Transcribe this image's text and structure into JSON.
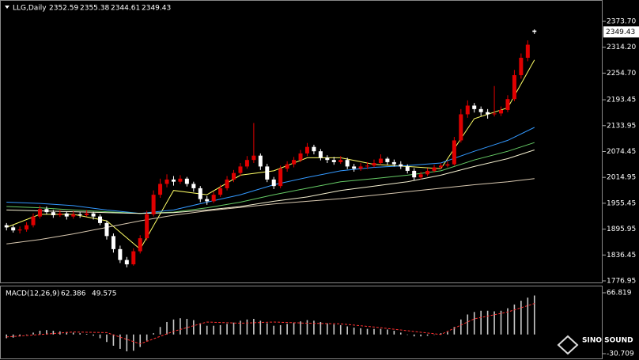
{
  "chart_data": [
    {
      "type": "candlestick",
      "title": "LLG,Daily",
      "ohlc": [
        2352.59,
        2355.38,
        2344.61,
        2349.43
      ],
      "current_price": 2349.43,
      "ylim": [
        1771.5,
        2419.2
      ],
      "yticks": [
        {
          "value": 2373.7,
          "label": "2373.70"
        },
        {
          "value": 2314.2,
          "label": "2314.20"
        },
        {
          "value": 2254.7,
          "label": "2254.70"
        },
        2193.45,
        2133.95,
        2074.45,
        2014.95,
        1955.45,
        1895.95,
        1836.45,
        1776.95
      ],
      "up_color": "#e00000",
      "down_color": "#ffffff",
      "candles": [
        [
          1905,
          1910,
          1893,
          1900
        ],
        [
          1900,
          1905,
          1888,
          1893
        ],
        [
          1893,
          1902,
          1886,
          1895
        ],
        [
          1895,
          1912,
          1890,
          1905
        ],
        [
          1905,
          1932,
          1900,
          1925
        ],
        [
          1925,
          1950,
          1920,
          1942
        ],
        [
          1942,
          1948,
          1930,
          1935
        ],
        [
          1935,
          1940,
          1922,
          1928
        ],
        [
          1928,
          1940,
          1924,
          1932
        ],
        [
          1932,
          1936,
          1918,
          1925
        ],
        [
          1925,
          1938,
          1920,
          1930
        ],
        [
          1930,
          1935,
          1922,
          1928
        ],
        [
          1928,
          1940,
          1925,
          1932
        ],
        [
          1932,
          1936,
          1918,
          1925
        ],
        [
          1925,
          1930,
          1905,
          1910
        ],
        [
          1910,
          1915,
          1872,
          1880
        ],
        [
          1880,
          1886,
          1842,
          1850
        ],
        [
          1850,
          1858,
          1818,
          1825
        ],
        [
          1825,
          1832,
          1808,
          1815
        ],
        [
          1815,
          1852,
          1812,
          1845
        ],
        [
          1845,
          1882,
          1840,
          1875
        ],
        [
          1875,
          1938,
          1870,
          1930
        ],
        [
          1930,
          1985,
          1925,
          1975
        ],
        [
          1975,
          2012,
          1968,
          2000
        ],
        [
          2000,
          2022,
          1992,
          2010
        ],
        [
          2010,
          2018,
          1996,
          2005
        ],
        [
          2005,
          2020,
          2000,
          2012
        ],
        [
          2012,
          2016,
          1994,
          2000
        ],
        [
          2000,
          2005,
          1982,
          1990
        ],
        [
          1990,
          1995,
          1958,
          1965
        ],
        [
          1965,
          1972,
          1952,
          1960
        ],
        [
          1960,
          1982,
          1956,
          1975
        ],
        [
          1975,
          1998,
          1970,
          1990
        ],
        [
          1990,
          2018,
          1985,
          2010
        ],
        [
          2010,
          2032,
          2004,
          2025
        ],
        [
          2025,
          2048,
          2018,
          2040
        ],
        [
          2040,
          2064,
          2035,
          2055
        ],
        [
          2055,
          2140,
          2048,
          2065
        ],
        [
          2065,
          2070,
          2032,
          2040
        ],
        [
          2040,
          2046,
          2004,
          2010
        ],
        [
          2010,
          2016,
          1988,
          1995
        ],
        [
          1995,
          2042,
          1990,
          2035
        ],
        [
          2035,
          2052,
          2028,
          2045
        ],
        [
          2045,
          2062,
          2038,
          2055
        ],
        [
          2055,
          2078,
          2050,
          2070
        ],
        [
          2070,
          2094,
          2064,
          2085
        ],
        [
          2085,
          2090,
          2068,
          2075
        ],
        [
          2075,
          2080,
          2054,
          2060
        ],
        [
          2060,
          2066,
          2048,
          2055
        ],
        [
          2055,
          2062,
          2044,
          2050
        ],
        [
          2050,
          2064,
          2046,
          2055
        ],
        [
          2055,
          2060,
          2034,
          2040
        ],
        [
          2040,
          2046,
          2028,
          2035
        ],
        [
          2035,
          2048,
          2030,
          2040
        ],
        [
          2040,
          2050,
          2034,
          2042
        ],
        [
          2042,
          2056,
          2038,
          2048
        ],
        [
          2048,
          2068,
          2044,
          2058
        ],
        [
          2058,
          2062,
          2044,
          2050
        ],
        [
          2050,
          2056,
          2040,
          2045
        ],
        [
          2045,
          2052,
          2034,
          2040
        ],
        [
          2040,
          2045,
          2024,
          2030
        ],
        [
          2030,
          2036,
          2008,
          2015
        ],
        [
          2015,
          2028,
          2010,
          2022
        ],
        [
          2022,
          2036,
          2018,
          2030
        ],
        [
          2030,
          2044,
          2026,
          2038
        ],
        [
          2038,
          2048,
          2034,
          2042
        ],
        [
          2042,
          2052,
          2038,
          2045
        ],
        [
          2045,
          2108,
          2042,
          2100
        ],
        [
          2100,
          2172,
          2095,
          2160
        ],
        [
          2160,
          2192,
          2152,
          2180
        ],
        [
          2180,
          2186,
          2164,
          2172
        ],
        [
          2172,
          2178,
          2156,
          2165
        ],
        [
          2165,
          2172,
          2150,
          2160
        ],
        [
          2160,
          2225,
          2155,
          2162
        ],
        [
          2162,
          2178,
          2156,
          2170
        ],
        [
          2170,
          2204,
          2165,
          2195
        ],
        [
          2195,
          2262,
          2190,
          2250
        ],
        [
          2250,
          2300,
          2242,
          2290
        ],
        [
          2290,
          2330,
          2282,
          2320
        ],
        [
          2352.59,
          2355.38,
          2344.61,
          2349.43
        ]
      ],
      "series": [
        {
          "color": "#ffff66",
          "x": [
            0,
            5,
            10,
            15,
            20,
            25,
            30,
            35,
            40,
            45,
            50,
            55,
            60,
            65,
            70,
            75,
            79
          ],
          "values": [
            1900,
            1930,
            1930,
            1915,
            1850,
            1985,
            1975,
            2020,
            2030,
            2060,
            2060,
            2045,
            2040,
            2035,
            2150,
            2175,
            2285
          ]
        },
        {
          "color": "#3399ff",
          "x": [
            0,
            5,
            10,
            15,
            20,
            25,
            30,
            35,
            40,
            45,
            50,
            55,
            60,
            65,
            70,
            75,
            79
          ],
          "values": [
            1958,
            1955,
            1950,
            1940,
            1932,
            1940,
            1958,
            1975,
            1998,
            2015,
            2030,
            2038,
            2042,
            2048,
            2075,
            2100,
            2130
          ]
        },
        {
          "color": "#66cc66",
          "x": [
            0,
            5,
            10,
            15,
            20,
            25,
            30,
            35,
            40,
            45,
            50,
            55,
            60,
            65,
            70,
            75,
            79
          ],
          "values": [
            1948,
            1945,
            1940,
            1936,
            1932,
            1935,
            1945,
            1958,
            1975,
            1990,
            2005,
            2012,
            2020,
            2030,
            2055,
            2075,
            2095
          ]
        },
        {
          "color": "#f5f0d0",
          "x": [
            0,
            5,
            10,
            15,
            20,
            25,
            30,
            35,
            40,
            45,
            50,
            55,
            60,
            65,
            70,
            75,
            79
          ],
          "values": [
            1940,
            1938,
            1936,
            1934,
            1932,
            1934,
            1940,
            1948,
            1960,
            1970,
            1985,
            1995,
            2005,
            2020,
            2040,
            2058,
            2078
          ]
        },
        {
          "color": "#d8c8b0",
          "x": [
            0,
            5,
            10,
            15,
            20,
            25,
            30,
            35,
            40,
            45,
            50,
            55,
            60,
            65,
            70,
            75,
            79
          ],
          "values": [
            1862,
            1872,
            1885,
            1900,
            1915,
            1928,
            1938,
            1946,
            1954,
            1960,
            1966,
            1974,
            1982,
            1990,
            1998,
            2005,
            2012
          ]
        }
      ]
    },
    {
      "type": "macd",
      "title": "MACD(12,26,9)",
      "values": [
        62.386,
        49.575
      ],
      "ylim": [
        -30.709,
        66.819
      ],
      "yticks": [
        66.819,
        -30.709
      ],
      "histogram_color": "#c8c8c8",
      "signal_color": "#ff3030",
      "histogram": [
        -6,
        -5,
        -3,
        0,
        3,
        6,
        7,
        6,
        5,
        4,
        3,
        2,
        1,
        -2,
        -6,
        -12,
        -18,
        -23,
        -27,
        -26,
        -20,
        -10,
        2,
        12,
        20,
        24,
        26,
        25,
        23,
        18,
        14,
        14,
        15,
        17,
        19,
        22,
        24,
        25,
        22,
        18,
        14,
        15,
        17,
        19,
        21,
        23,
        22,
        20,
        18,
        16,
        15,
        13,
        11,
        10,
        9,
        9,
        9,
        8,
        6,
        3,
        0,
        -3,
        -3,
        -2,
        0,
        2,
        4,
        12,
        24,
        32,
        36,
        38,
        38,
        37,
        38,
        42,
        48,
        54,
        59,
        62.386
      ],
      "signal": {
        "x": [
          0,
          5,
          10,
          15,
          20,
          25,
          30,
          35,
          40,
          45,
          50,
          55,
          60,
          65,
          70,
          75,
          79
        ],
        "values": [
          -4,
          0,
          4,
          3,
          -15,
          5,
          20,
          18,
          20,
          18,
          17,
          12,
          6,
          0,
          25,
          36,
          49.575
        ]
      }
    }
  ],
  "watermark": "SINO SOUND"
}
